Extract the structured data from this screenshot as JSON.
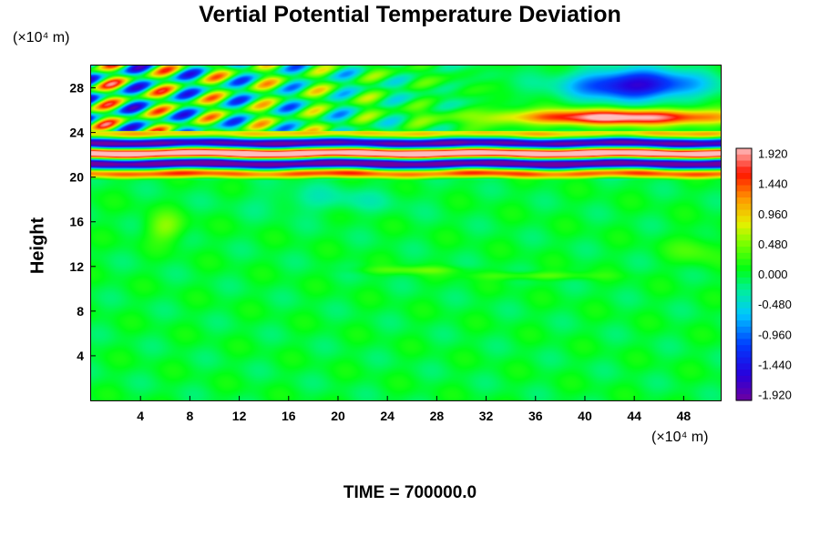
{
  "chart_data": {
    "type": "heatmap",
    "title": "Vertial Potential Temperature Deviation",
    "ylabel": "Height",
    "x_unit": "(×10⁴ m)",
    "y_unit": "(×10⁴ m)",
    "xlim": [
      0,
      51
    ],
    "ylim": [
      0,
      30
    ],
    "x_ticks": [
      4,
      8,
      12,
      16,
      20,
      24,
      28,
      32,
      36,
      40,
      44,
      48
    ],
    "y_ticks": [
      4,
      8,
      12,
      16,
      20,
      24,
      28
    ],
    "colorbar_labels": [
      "1.920",
      "1.440",
      "0.960",
      "0.480",
      "0.000",
      "-0.480",
      "-0.960",
      "-1.440",
      "-1.920"
    ],
    "colorbar_range": [
      -1.92,
      1.92
    ],
    "annotation": "TIME = 700000.0"
  }
}
